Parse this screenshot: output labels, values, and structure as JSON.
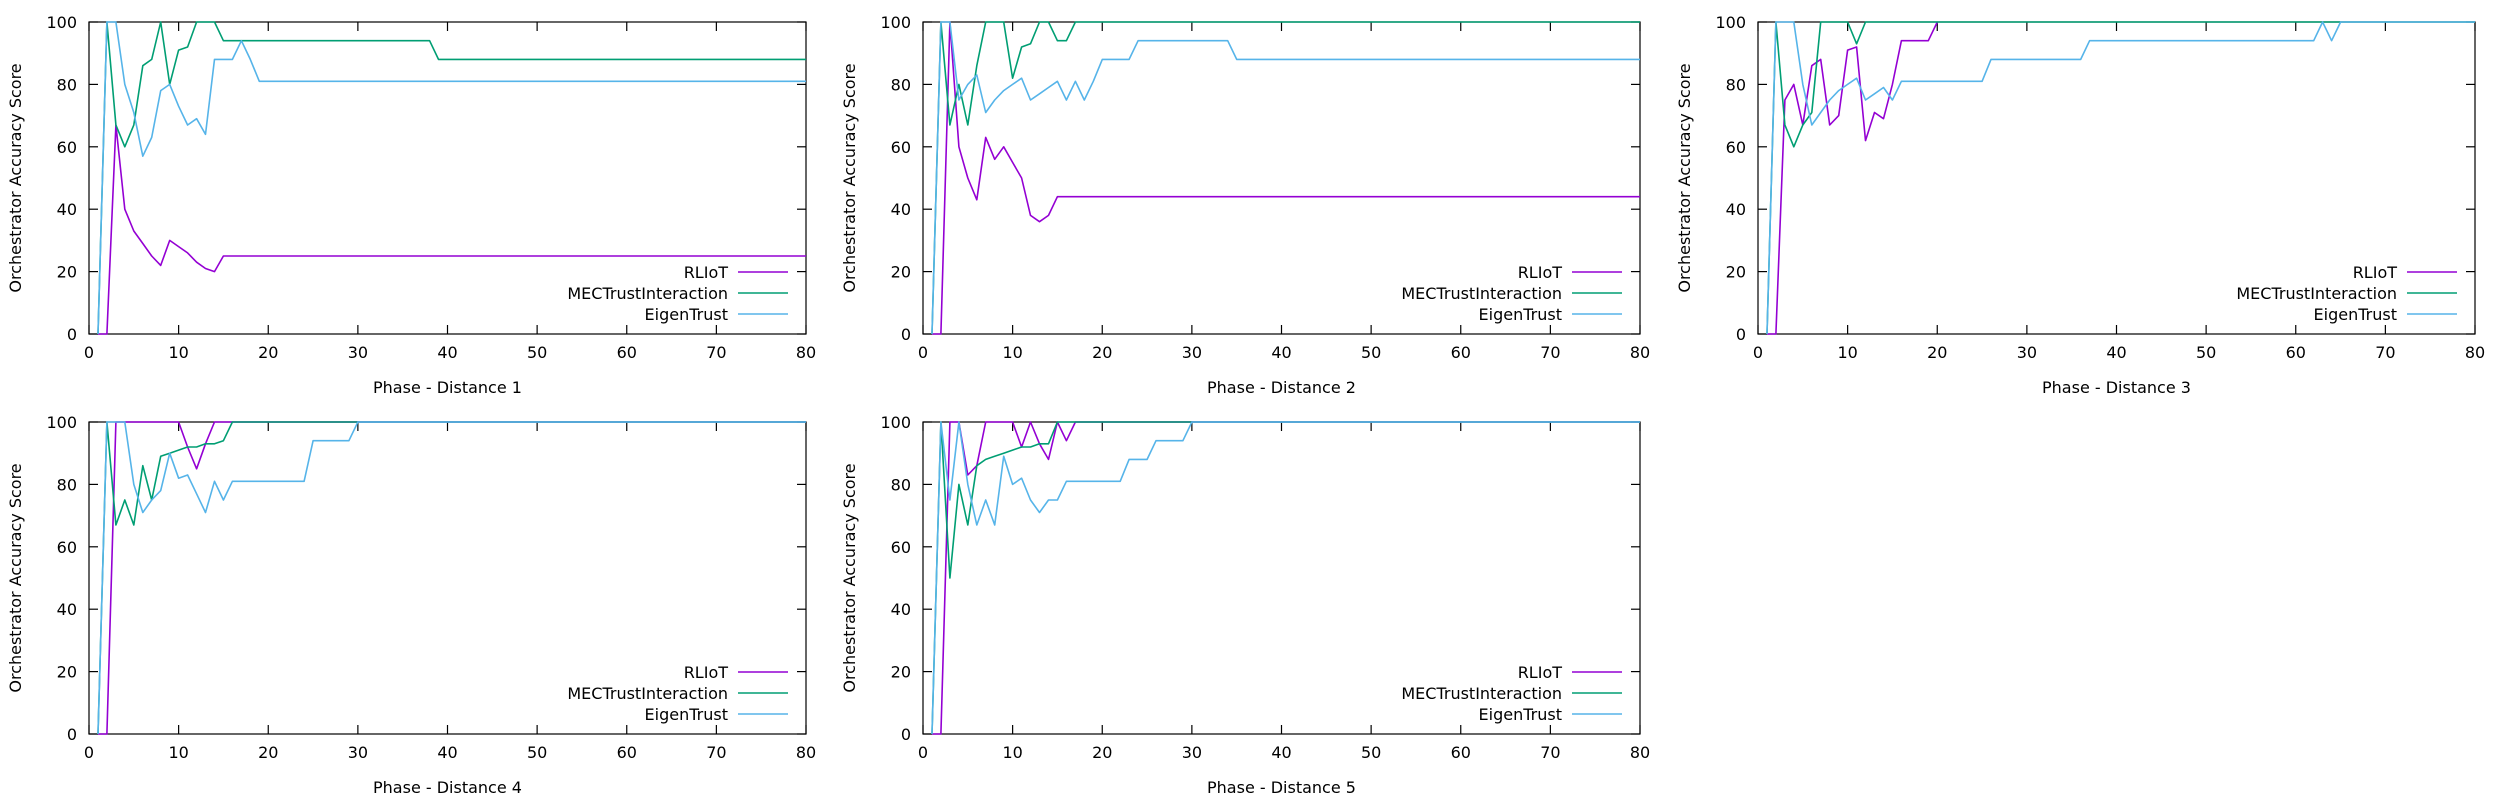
{
  "chart_data": [
    {
      "type": "line",
      "xlabel": "Phase - Distance 1",
      "ylabel": "Orchestrator Accuracy Score",
      "xlim": [
        0,
        80
      ],
      "ylim": [
        0,
        100
      ],
      "xticks": [
        0,
        10,
        20,
        30,
        40,
        50,
        60,
        70,
        80
      ],
      "yticks": [
        0,
        20,
        40,
        60,
        80,
        100
      ],
      "legend": "bottom-right",
      "series": [
        {
          "name": "RLIoT",
          "color": "#9400d3",
          "x": [
            1,
            2,
            3,
            4,
            5,
            6,
            7,
            8,
            9,
            10,
            11,
            12,
            13,
            14,
            15,
            16,
            17,
            18,
            19,
            20,
            80
          ],
          "y": [
            0,
            0,
            67,
            40,
            33,
            29,
            25,
            22,
            30,
            28,
            26,
            23,
            21,
            20,
            25,
            25,
            25,
            25,
            25,
            25,
            25
          ]
        },
        {
          "name": "MECTrustInteraction",
          "color": "#009e73",
          "x": [
            1,
            2,
            3,
            4,
            5,
            6,
            7,
            8,
            9,
            10,
            11,
            12,
            13,
            14,
            15,
            16,
            17,
            18,
            19,
            20,
            38,
            39,
            80
          ],
          "y": [
            0,
            100,
            67,
            60,
            67,
            86,
            88,
            100,
            80,
            91,
            92,
            100,
            100,
            100,
            94,
            94,
            94,
            94,
            94,
            94,
            94,
            88,
            88
          ]
        },
        {
          "name": "EigenTrust",
          "color": "#56b4e9",
          "x": [
            1,
            2,
            3,
            4,
            5,
            6,
            7,
            8,
            9,
            10,
            11,
            12,
            13,
            14,
            15,
            16,
            17,
            18,
            19,
            20,
            80
          ],
          "y": [
            0,
            100,
            100,
            80,
            71,
            57,
            63,
            78,
            80,
            73,
            67,
            69,
            64,
            88,
            88,
            88,
            94,
            88,
            81,
            81,
            81
          ]
        }
      ]
    },
    {
      "type": "line",
      "xlabel": "Phase - Distance 2",
      "ylabel": "Orchestrator Accuracy Score",
      "xlim": [
        0,
        80
      ],
      "ylim": [
        0,
        100
      ],
      "xticks": [
        0,
        10,
        20,
        30,
        40,
        50,
        60,
        70,
        80
      ],
      "yticks": [
        0,
        20,
        40,
        60,
        80,
        100
      ],
      "legend": "bottom-right",
      "series": [
        {
          "name": "RLIoT",
          "color": "#9400d3",
          "x": [
            1,
            2,
            3,
            4,
            5,
            6,
            7,
            8,
            9,
            10,
            11,
            12,
            13,
            14,
            15,
            16,
            80
          ],
          "y": [
            0,
            0,
            100,
            60,
            50,
            43,
            63,
            56,
            60,
            55,
            50,
            38,
            36,
            38,
            44,
            44,
            44
          ]
        },
        {
          "name": "MECTrustInteraction",
          "color": "#009e73",
          "x": [
            1,
            2,
            3,
            4,
            5,
            6,
            7,
            8,
            9,
            10,
            11,
            12,
            13,
            14,
            15,
            16,
            17,
            80
          ],
          "y": [
            0,
            100,
            67,
            80,
            67,
            86,
            100,
            100,
            100,
            82,
            92,
            93,
            100,
            100,
            94,
            94,
            100,
            100
          ]
        },
        {
          "name": "EigenTrust",
          "color": "#56b4e9",
          "x": [
            1,
            2,
            3,
            4,
            5,
            6,
            7,
            8,
            9,
            10,
            11,
            12,
            13,
            14,
            15,
            16,
            17,
            18,
            19,
            20,
            21,
            22,
            23,
            24,
            34,
            35,
            80
          ],
          "y": [
            0,
            100,
            100,
            75,
            80,
            83,
            71,
            75,
            78,
            80,
            82,
            75,
            77,
            79,
            81,
            75,
            81,
            75,
            81,
            88,
            88,
            88,
            88,
            94,
            94,
            88,
            88
          ]
        }
      ]
    },
    {
      "type": "line",
      "xlabel": "Phase - Distance 3",
      "ylabel": "Orchestrator Accuracy Score",
      "xlim": [
        0,
        80
      ],
      "ylim": [
        0,
        100
      ],
      "xticks": [
        0,
        10,
        20,
        30,
        40,
        50,
        60,
        70,
        80
      ],
      "yticks": [
        0,
        20,
        40,
        60,
        80,
        100
      ],
      "legend": "bottom-right",
      "series": [
        {
          "name": "RLIoT",
          "color": "#9400d3",
          "x": [
            1,
            2,
            3,
            4,
            5,
            6,
            7,
            8,
            9,
            10,
            11,
            12,
            13,
            14,
            15,
            16,
            17,
            18,
            19,
            20
          ],
          "y": [
            0,
            0,
            75,
            80,
            67,
            86,
            88,
            67,
            70,
            91,
            92,
            62,
            71,
            69,
            80,
            94,
            94,
            94,
            94,
            100
          ]
        },
        {
          "name": "MECTrustInteraction",
          "color": "#009e73",
          "x": [
            1,
            2,
            3,
            4,
            5,
            6,
            7,
            8,
            9,
            10,
            11,
            12,
            80
          ],
          "y": [
            0,
            100,
            67,
            60,
            67,
            71,
            100,
            100,
            100,
            100,
            93,
            100,
            100
          ]
        },
        {
          "name": "EigenTrust",
          "color": "#56b4e9",
          "x": [
            1,
            2,
            3,
            4,
            5,
            6,
            7,
            8,
            9,
            10,
            11,
            12,
            13,
            14,
            15,
            16,
            17,
            18,
            19,
            20,
            21,
            22,
            23,
            24,
            25,
            26,
            27,
            28,
            29,
            30,
            31,
            32,
            33,
            34,
            35,
            36,
            37,
            38,
            62,
            63,
            64,
            65,
            80
          ],
          "y": [
            0,
            100,
            100,
            100,
            80,
            67,
            71,
            75,
            78,
            80,
            82,
            75,
            77,
            79,
            75,
            81,
            81,
            81,
            81,
            81,
            81,
            81,
            81,
            81,
            81,
            88,
            88,
            88,
            88,
            88,
            88,
            88,
            88,
            88,
            88,
            88,
            94,
            94,
            94,
            100,
            94,
            100,
            100
          ]
        }
      ]
    },
    {
      "type": "line",
      "xlabel": "Phase - Distance 4",
      "ylabel": "Orchestrator Accuracy Score",
      "xlim": [
        0,
        80
      ],
      "ylim": [
        0,
        100
      ],
      "xticks": [
        0,
        10,
        20,
        30,
        40,
        50,
        60,
        70,
        80
      ],
      "yticks": [
        0,
        20,
        40,
        60,
        80,
        100
      ],
      "legend": "bottom-right",
      "series": [
        {
          "name": "RLIoT",
          "color": "#9400d3",
          "x": [
            1,
            2,
            3,
            4,
            5,
            6,
            7,
            8,
            9,
            10,
            11,
            12,
            13,
            14,
            15,
            16,
            80
          ],
          "y": [
            0,
            0,
            100,
            100,
            100,
            100,
            100,
            100,
            100,
            100,
            92,
            85,
            93,
            100,
            100,
            100,
            100
          ]
        },
        {
          "name": "MECTrustInteraction",
          "color": "#009e73",
          "x": [
            1,
            2,
            3,
            4,
            5,
            6,
            7,
            8,
            9,
            10,
            11,
            12,
            13,
            14,
            15,
            16,
            80
          ],
          "y": [
            0,
            100,
            67,
            75,
            67,
            86,
            75,
            89,
            90,
            91,
            92,
            92,
            93,
            93,
            94,
            100,
            100
          ]
        },
        {
          "name": "EigenTrust",
          "color": "#56b4e9",
          "x": [
            1,
            2,
            3,
            4,
            5,
            6,
            7,
            8,
            9,
            10,
            11,
            12,
            13,
            14,
            15,
            16,
            17,
            18,
            19,
            20,
            21,
            22,
            23,
            24,
            25,
            26,
            27,
            28,
            29,
            30,
            80
          ],
          "y": [
            0,
            100,
            100,
            100,
            80,
            71,
            75,
            78,
            90,
            82,
            83,
            77,
            71,
            81,
            75,
            81,
            81,
            81,
            81,
            81,
            81,
            81,
            81,
            81,
            94,
            94,
            94,
            94,
            94,
            100,
            100
          ]
        }
      ]
    },
    {
      "type": "line",
      "xlabel": "Phase - Distance 5",
      "ylabel": "Orchestrator Accuracy Score",
      "xlim": [
        0,
        80
      ],
      "ylim": [
        0,
        100
      ],
      "xticks": [
        0,
        10,
        20,
        30,
        40,
        50,
        60,
        70,
        80
      ],
      "yticks": [
        0,
        20,
        40,
        60,
        80,
        100
      ],
      "legend": "bottom-right",
      "series": [
        {
          "name": "RLIoT",
          "color": "#9400d3",
          "x": [
            1,
            2,
            3,
            4,
            5,
            6,
            7,
            8,
            9,
            10,
            11,
            12,
            13,
            14,
            15,
            16,
            17,
            80
          ],
          "y": [
            0,
            0,
            100,
            100,
            83,
            86,
            100,
            100,
            100,
            100,
            92,
            100,
            93,
            88,
            100,
            94,
            100,
            100
          ]
        },
        {
          "name": "MECTrustInteraction",
          "color": "#009e73",
          "x": [
            1,
            2,
            3,
            4,
            5,
            6,
            7,
            8,
            9,
            10,
            11,
            12,
            13,
            14,
            15,
            16,
            17,
            18,
            80
          ],
          "y": [
            0,
            100,
            50,
            80,
            67,
            86,
            88,
            89,
            90,
            91,
            92,
            92,
            93,
            93,
            100,
            100,
            100,
            100,
            100
          ]
        },
        {
          "name": "EigenTrust",
          "color": "#56b4e9",
          "x": [
            1,
            2,
            3,
            4,
            5,
            6,
            7,
            8,
            9,
            10,
            11,
            12,
            13,
            14,
            15,
            16,
            17,
            18,
            19,
            20,
            21,
            22,
            23,
            24,
            25,
            26,
            27,
            28,
            29,
            30,
            80
          ],
          "y": [
            0,
            100,
            75,
            100,
            80,
            67,
            75,
            67,
            89,
            80,
            82,
            75,
            71,
            75,
            75,
            81,
            81,
            81,
            81,
            81,
            81,
            81,
            88,
            88,
            88,
            94,
            94,
            94,
            94,
            100,
            100
          ]
        }
      ]
    }
  ]
}
